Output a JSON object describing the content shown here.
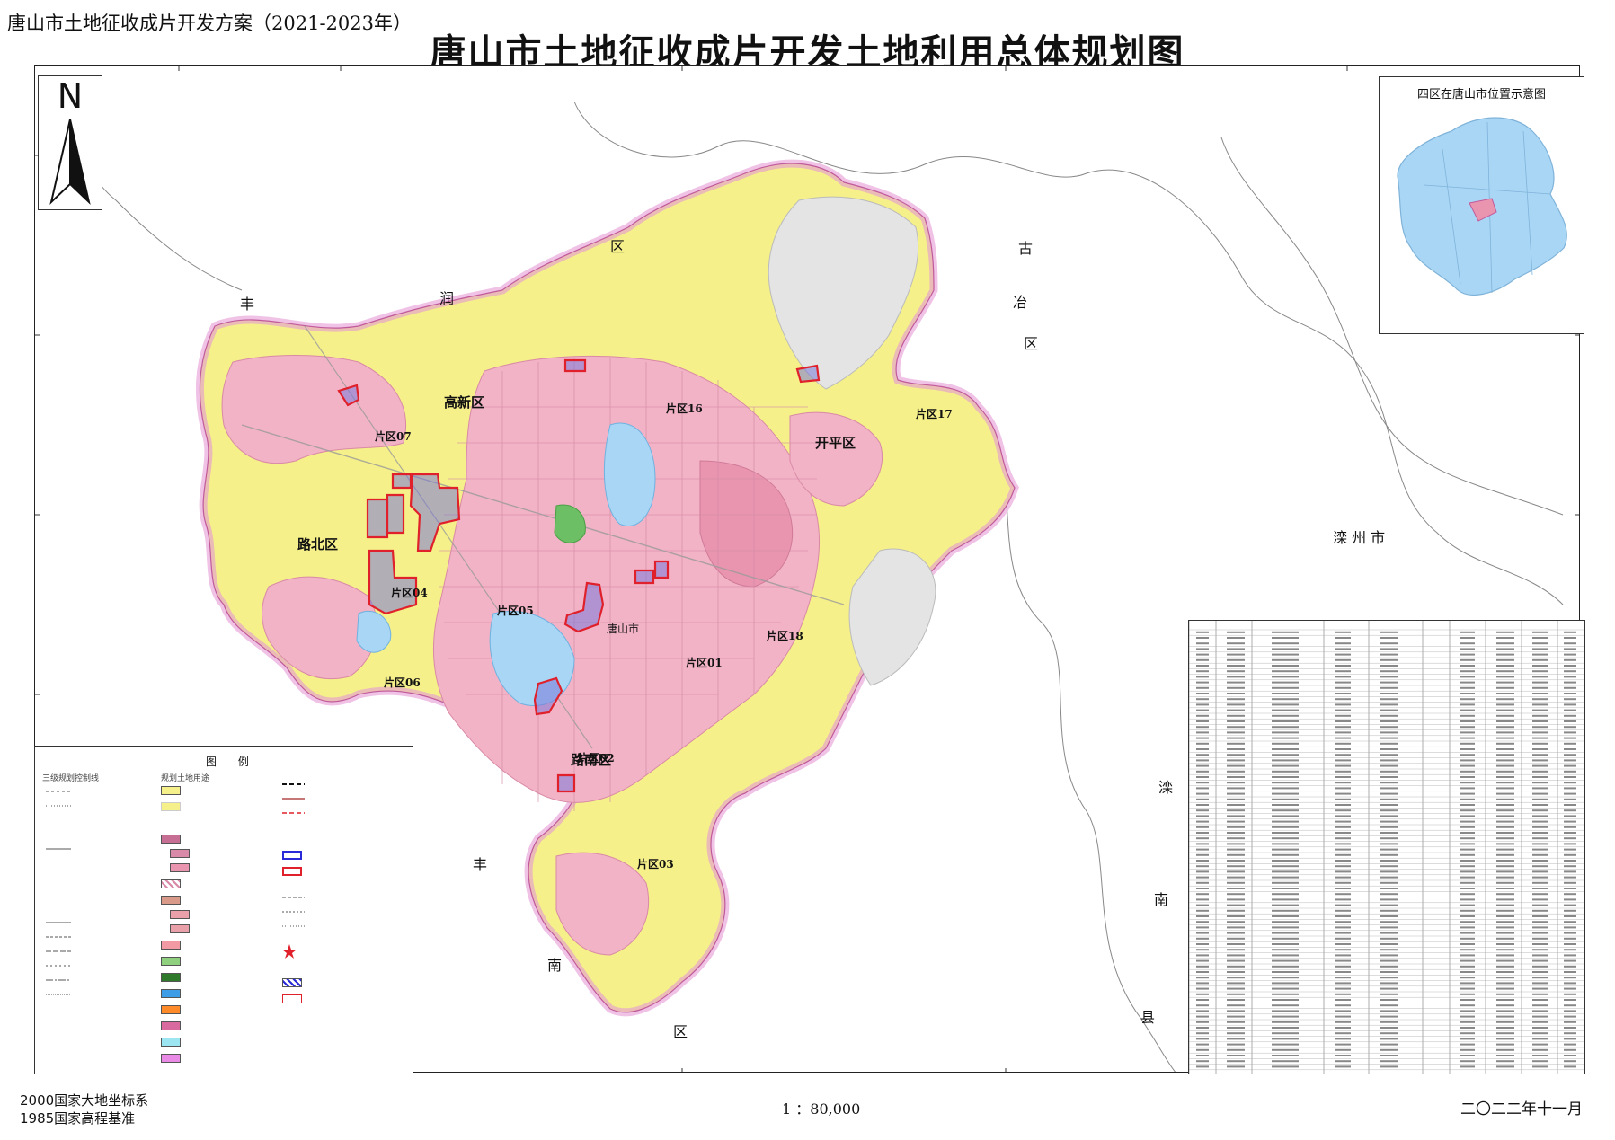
{
  "header": {
    "caption": "唐山市土地征收成片开发方案（2021-2023年）",
    "title": "唐山市土地征收成片开发土地利用总体规划图"
  },
  "north_arrow": {
    "label": "N",
    "icon": "north-arrow-icon"
  },
  "inset": {
    "title": "四区在唐山市位置示意图"
  },
  "regions": {
    "fengrun": [
      "丰",
      "润",
      "区"
    ],
    "guye": [
      "古",
      "冶",
      "区"
    ],
    "luanzhou": "滦 州 市",
    "luannan": [
      "滦",
      "南",
      "县"
    ],
    "fengnan": [
      "丰",
      "南",
      "区"
    ],
    "gaoxin": "高新区",
    "kaiping": "开平区",
    "lubei": "路北区",
    "lunan": "路南区",
    "city": "唐山市"
  },
  "zones": [
    "片区07",
    "片区16",
    "片区17",
    "片区04",
    "片区05",
    "片区18",
    "片区01",
    "片区06",
    "片区02",
    "片区03"
  ],
  "legend": {
    "title": "图 例",
    "col1_header": "三级规划控制线",
    "col2_header": "规划土地用途",
    "col3_header": ""
  },
  "footer": {
    "coord_system": "2000国家大地坐标系",
    "elevation": "1985国家高程基准",
    "scale": "1 ：80,000",
    "date": "二〇二二年十一月"
  },
  "colors": {
    "urban_pink": "#f2b3c6",
    "urban_pink_dark": "#e995b0",
    "farmland_yellow": "#f5f08a",
    "water_blue": "#a9d6f5",
    "boundary_magenta": "#e59ad6",
    "zone_red": "#e0202a",
    "zone_blue": "#2a2ad8"
  }
}
